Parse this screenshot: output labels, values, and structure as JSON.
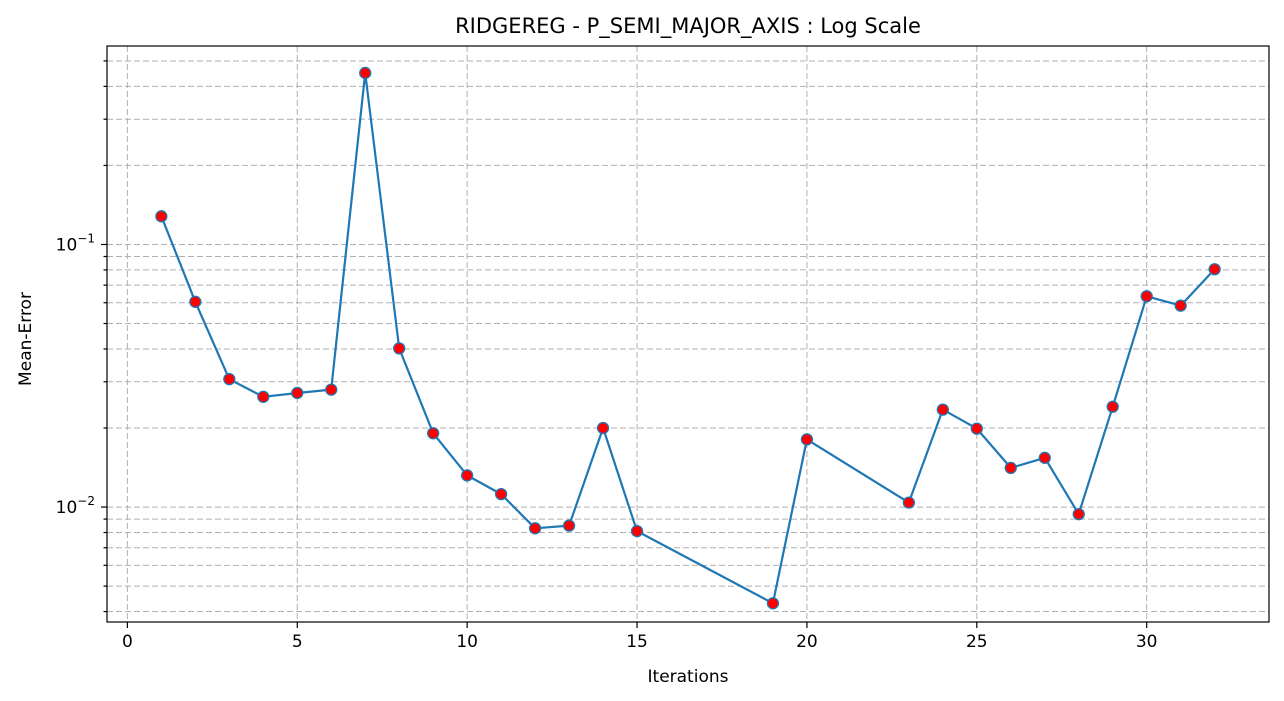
{
  "chart_data": {
    "type": "line",
    "title": "RIDGEREG - P_SEMI_MAJOR_AXIS : Log Scale",
    "xlabel": "Iterations",
    "ylabel": "Mean-Error",
    "yscale": "log",
    "xlim": [
      -0.6,
      33.6
    ],
    "ylim": [
      0.00365,
      0.57
    ],
    "grid": true,
    "x_ticks": [
      0,
      5,
      10,
      15,
      20,
      25,
      30
    ],
    "y_major_ticks": [
      {
        "value": 0.1,
        "base": "10",
        "exp": "−1"
      },
      {
        "value": 0.01,
        "base": "10",
        "exp": "−2"
      }
    ],
    "y_minor_ticks": [
      0.004,
      0.005,
      0.006,
      0.007,
      0.008,
      0.009,
      0.02,
      0.03,
      0.04,
      0.05,
      0.06,
      0.07,
      0.08,
      0.09,
      0.2,
      0.3,
      0.4,
      0.5
    ],
    "line_color": "#1f77b4",
    "marker_color": "#ff0000",
    "series": [
      {
        "x": [
          1,
          2,
          3,
          4,
          5,
          6,
          7,
          8,
          9,
          10,
          11,
          12,
          13,
          14,
          15,
          19,
          20,
          23,
          24,
          25,
          26,
          27,
          28,
          29,
          30,
          31,
          32
        ],
        "y": [
          0.128,
          0.0605,
          0.0307,
          0.0263,
          0.0272,
          0.028,
          0.45,
          0.0402,
          0.0191,
          0.0132,
          0.0112,
          0.0083,
          0.0085,
          0.02,
          0.0081,
          0.0043,
          0.0181,
          0.0104,
          0.0235,
          0.0199,
          0.0141,
          0.0154,
          0.0094,
          0.0241,
          0.0635,
          0.0585,
          0.0805
        ]
      }
    ]
  }
}
